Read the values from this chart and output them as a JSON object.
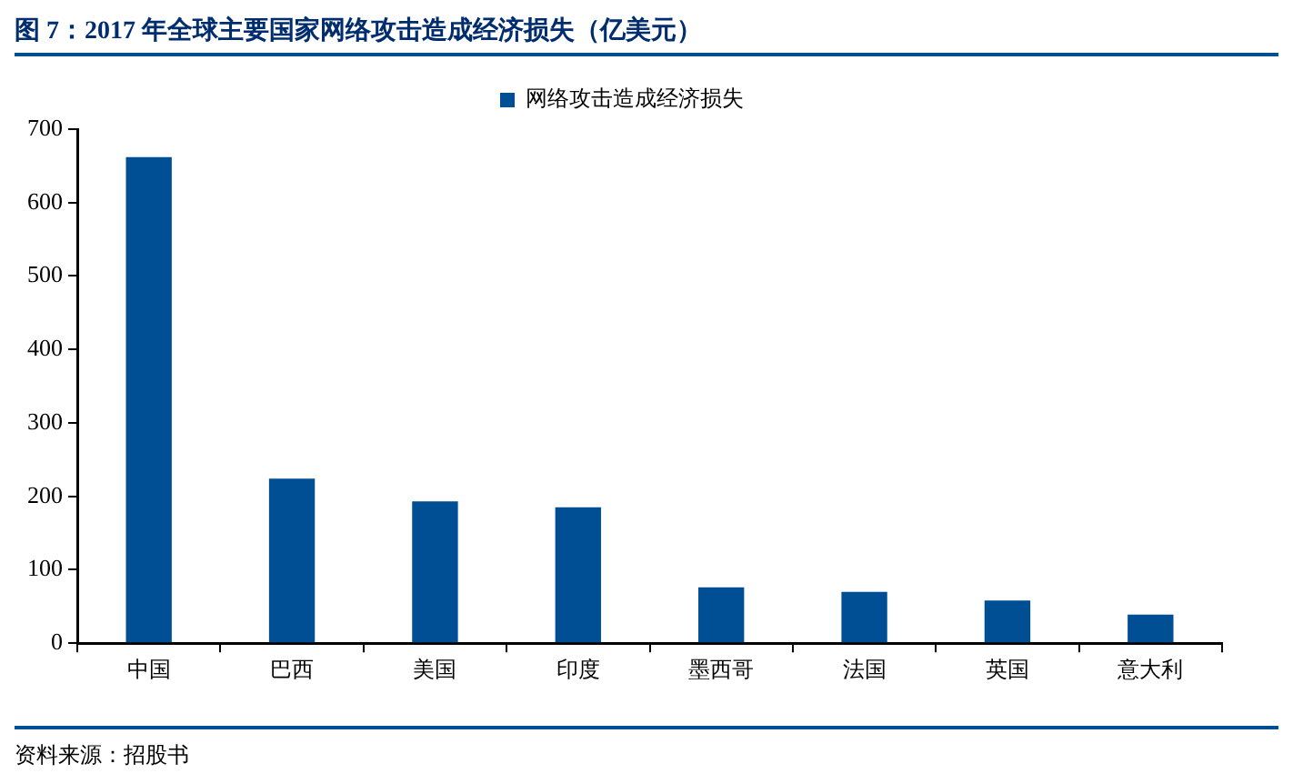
{
  "chart_data": {
    "type": "bar",
    "title": "图 7：2017 年全球主要国家网络攻击造成经济损失（亿美元）",
    "categories": [
      "中国",
      "巴西",
      "美国",
      "印度",
      "墨西哥",
      "法国",
      "英国",
      "意大利"
    ],
    "series": [
      {
        "name": "网络攻击造成经济损失",
        "color": "#004f95",
        "values": [
          662,
          224,
          193,
          185,
          76,
          70,
          58,
          39
        ]
      }
    ],
    "ylim": [
      0,
      700
    ],
    "yticks": [
      0,
      100,
      200,
      300,
      400,
      500,
      600,
      700
    ],
    "grid": false,
    "legend": "top",
    "annotations": [
      "资料来源：招股书"
    ]
  }
}
